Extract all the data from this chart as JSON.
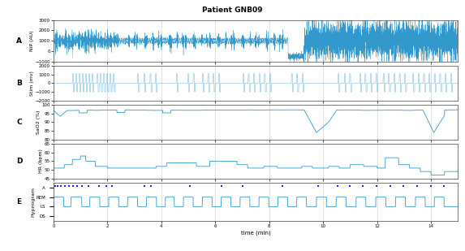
{
  "title": "Patient GNB09",
  "xlabel": "time (min)",
  "xlim": [
    0,
    15
  ],
  "xticks": [
    0,
    2,
    4,
    6,
    8,
    10,
    12,
    14
  ],
  "panel_labels": [
    "A",
    "B",
    "C",
    "D",
    "E"
  ],
  "panel_A": {
    "ylabel": "NiP (AU)",
    "ylim": [
      -1000,
      3000
    ],
    "yticks": [
      -1000,
      0,
      1000,
      2000,
      3000
    ],
    "ytick_labels": [
      "-1000",
      "0",
      "1000",
      "2000",
      "3000"
    ]
  },
  "panel_B": {
    "ylabel": "Stim (mv)",
    "ylim": [
      -2000,
      2000
    ],
    "yticks": [
      -2000,
      -1000,
      0,
      1000,
      2000
    ],
    "ytick_labels": [
      "-2000",
      "-1000",
      "0",
      "1000",
      "2000"
    ]
  },
  "panel_C": {
    "ylabel": "SaO2 (%)",
    "ylim": [
      80,
      100
    ],
    "yticks": [
      80,
      85,
      90,
      95,
      100
    ],
    "ytick_labels": [
      "80",
      "85",
      "90",
      "95",
      "100"
    ]
  },
  "panel_D": {
    "ylabel": "HR (bpm)",
    "ylim": [
      45,
      65
    ],
    "yticks": [
      45,
      50,
      55,
      60,
      65
    ],
    "ytick_labels": [
      "45",
      "50",
      "55",
      "60",
      "65"
    ]
  },
  "panel_E": {
    "ylabel": "Hypnogram",
    "ylim": [
      -0.5,
      3.5
    ],
    "yticks": [
      0,
      1,
      2,
      3
    ],
    "yticklabels": [
      "DS",
      "LS",
      "REM",
      "A"
    ],
    "dot_color": "#1a1aff",
    "dot_times": [
      0.05,
      0.15,
      0.28,
      0.42,
      0.58,
      0.72,
      0.88,
      1.05,
      1.3,
      1.7,
      1.95,
      2.18,
      3.38,
      3.62,
      5.05,
      6.22,
      7.02,
      8.48,
      9.82,
      10.52,
      10.98,
      11.48,
      11.98,
      12.48,
      12.98,
      13.48,
      13.98,
      14.48
    ]
  },
  "background_color": "#ffffff",
  "grid_color": "#aaaaaa",
  "line_color": "#3399cc",
  "tick_fontsize": 4,
  "ylabel_fontsize": 4.5,
  "label_fontsize": 6.5
}
